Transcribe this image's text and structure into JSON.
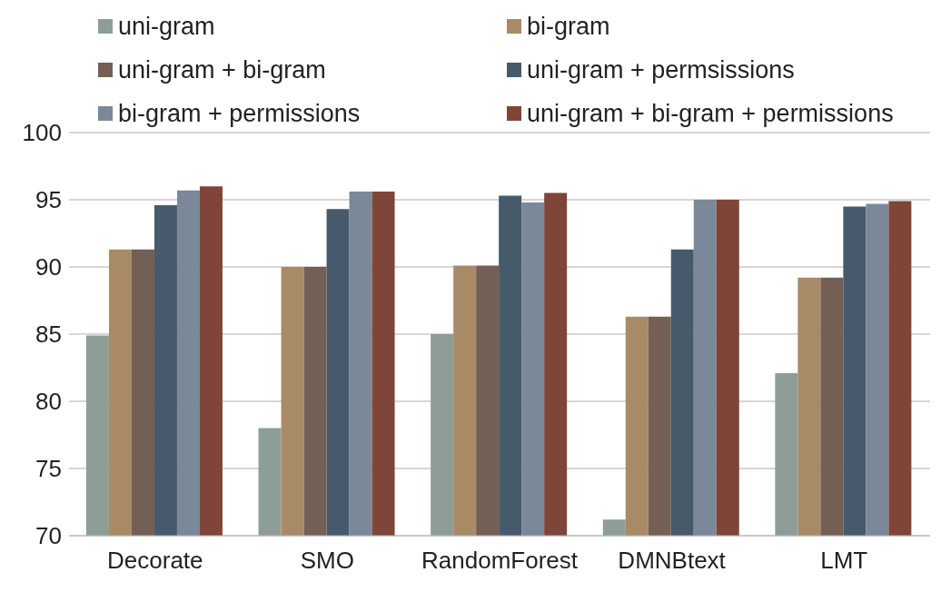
{
  "chart_data": {
    "type": "bar",
    "categories": [
      "Decorate",
      "SMO",
      "RandomForest",
      "DMNBtext",
      "LMT"
    ],
    "series": [
      {
        "name": "uni-gram",
        "color": "#8e9e96",
        "values": [
          84.9,
          78.0,
          85.0,
          71.2,
          82.1
        ]
      },
      {
        "name": "bi-gram",
        "color": "#a98a66",
        "values": [
          91.3,
          90.0,
          90.1,
          86.3,
          89.2
        ]
      },
      {
        "name": "uni-gram + bi-gram",
        "color": "#735f53",
        "values": [
          91.3,
          90.0,
          90.1,
          86.3,
          89.2
        ]
      },
      {
        "name": "uni-gram + permsissions",
        "color": "#475a6b",
        "values": [
          94.6,
          94.3,
          95.3,
          91.3,
          94.5
        ]
      },
      {
        "name": "bi-gram + permissions",
        "color": "#7b889a",
        "values": [
          95.7,
          95.6,
          94.8,
          95.0,
          94.7
        ]
      },
      {
        "name": "uni-gram + bi-gram + permissions",
        "color": "#7e4538",
        "values": [
          96.0,
          95.6,
          95.5,
          95.0,
          94.9
        ]
      }
    ],
    "ylim": [
      70,
      100
    ],
    "yticks": [
      70,
      75,
      80,
      85,
      90,
      95,
      100
    ],
    "grid": "y",
    "legend": "top"
  }
}
